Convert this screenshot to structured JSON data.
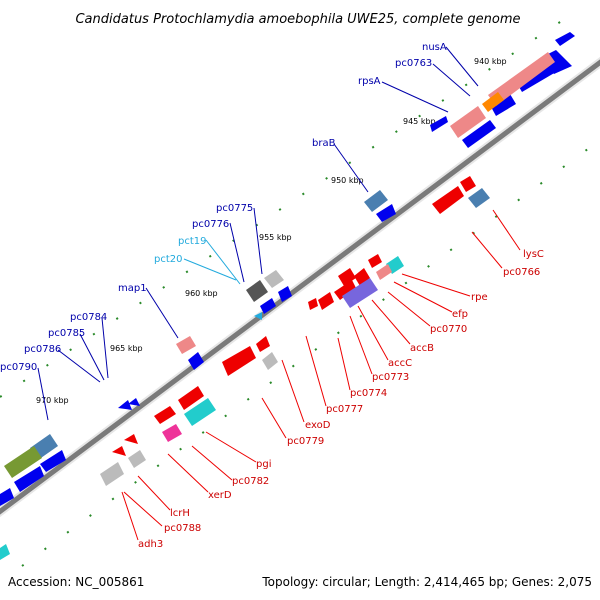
{
  "title": "Candidatus Protochlamydia amoebophila UWE25, complete genome",
  "footer": {
    "accession": "Accession: NC_005861",
    "summary": "Topology: circular; Length: 2,414,465 bp; Genes: 2,075"
  },
  "ticks": [
    "940 kbp",
    "945 kbp",
    "950 kbp",
    "955 kbp",
    "960 kbp",
    "965 kbp",
    "970 kbp"
  ],
  "colors": {
    "backbone": "#888888",
    "forward_gene": "#0000ee",
    "reverse_gene": "#ee0000",
    "label_blue": "#0000aa",
    "label_cyan": "#22aadd",
    "label_red": "#cc0000",
    "rna_pink": "#ee8888",
    "steelblue": "#4a7fb0",
    "orange": "#ff8800",
    "cyan": "#22cccc",
    "purple": "#7766dd",
    "gray": "#bbbbbb",
    "magenta": "#ee3399",
    "olive": "#779933"
  },
  "labels_top": [
    "nusA",
    "pc0763",
    "rpsA",
    "braB",
    "pc0775",
    "pc0776",
    "pct19",
    "pct20",
    "map1",
    "pc0784",
    "pc0785",
    "pc0786",
    "pc0790"
  ],
  "labels_bottom": [
    "lysC",
    "pc0766",
    "rpe",
    "efp",
    "pc0770",
    "accB",
    "accC",
    "pc0773",
    "pc0774",
    "pc0777",
    "exoD",
    "pc0779",
    "pgi",
    "pc0782",
    "xerD",
    "lcrH",
    "pc0788",
    "adh3"
  ]
}
